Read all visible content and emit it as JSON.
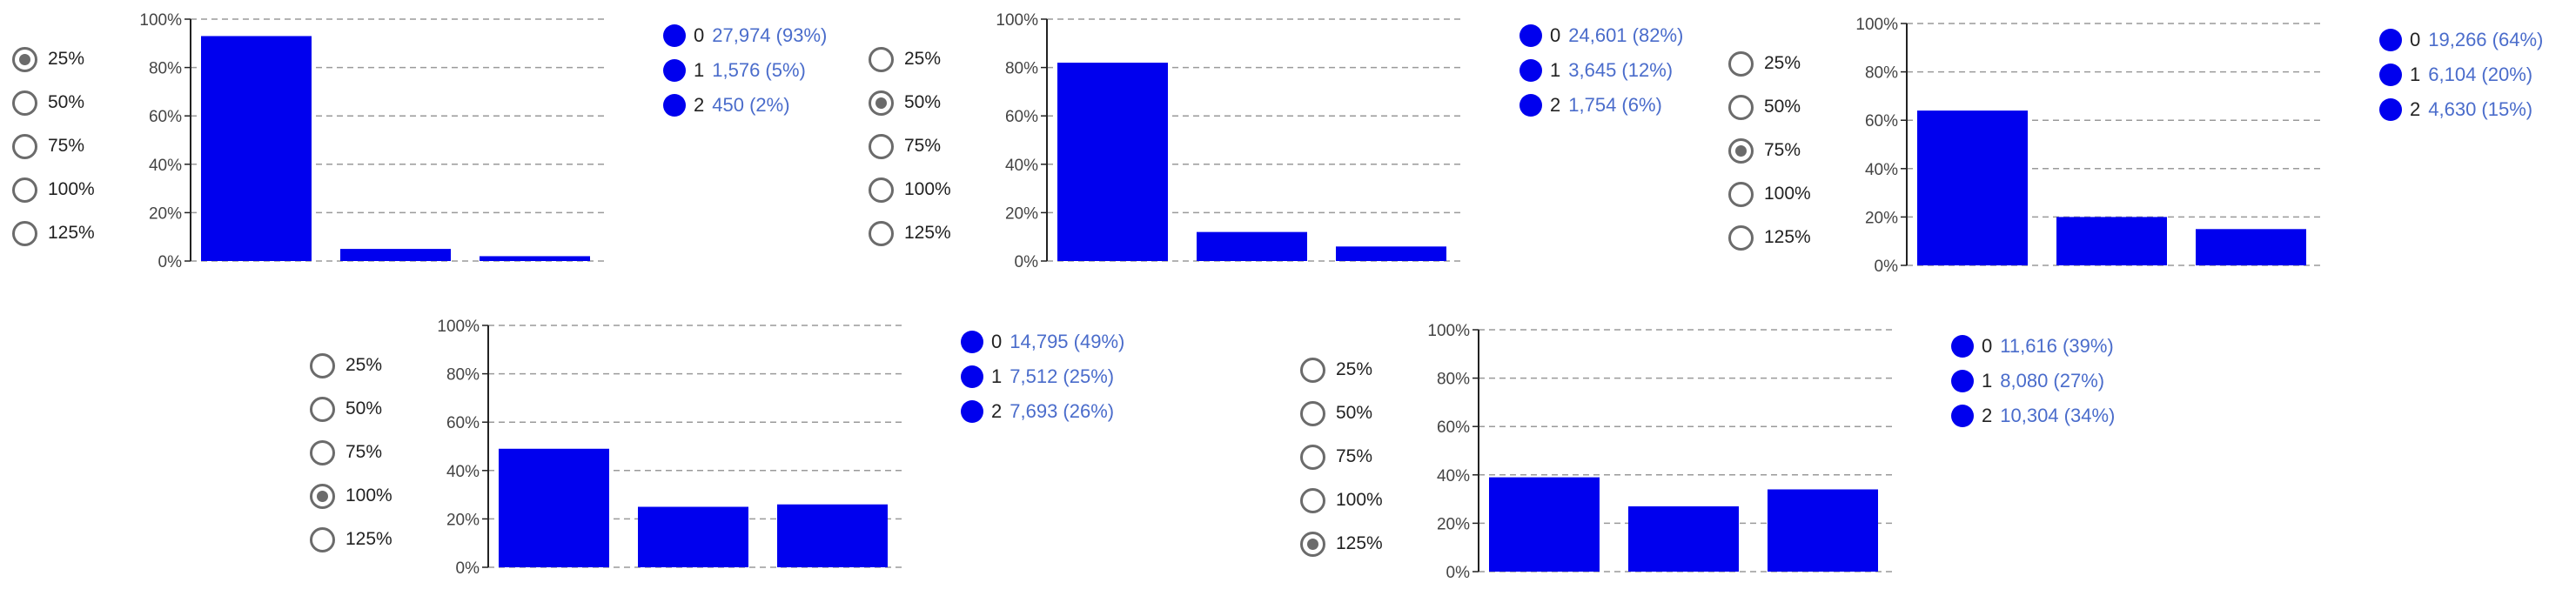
{
  "colors": {
    "bar": "#0000ee",
    "value_text": "#4a6ccb",
    "radio": "#6b6b6b",
    "grid": "#9a9a9a"
  },
  "radio_options": [
    "25%",
    "50%",
    "75%",
    "100%",
    "125%"
  ],
  "panels": [
    {
      "selected": "25%",
      "legend": [
        {
          "key": "0",
          "value": "27,974 (93%)"
        },
        {
          "key": "1",
          "value": "1,576 (5%)"
        },
        {
          "key": "2",
          "value": "450 (2%)"
        }
      ]
    },
    {
      "selected": "50%",
      "legend": [
        {
          "key": "0",
          "value": "24,601 (82%)"
        },
        {
          "key": "1",
          "value": "3,645 (12%)"
        },
        {
          "key": "2",
          "value": "1,754 (6%)"
        }
      ]
    },
    {
      "selected": "75%",
      "legend": [
        {
          "key": "0",
          "value": "19,266 (64%)"
        },
        {
          "key": "1",
          "value": "6,104 (20%)"
        },
        {
          "key": "2",
          "value": "4,630 (15%)"
        }
      ]
    },
    {
      "selected": "100%",
      "legend": [
        {
          "key": "0",
          "value": "14,795 (49%)"
        },
        {
          "key": "1",
          "value": "7,512 (25%)"
        },
        {
          "key": "2",
          "value": "7,693 (26%)"
        }
      ]
    },
    {
      "selected": "125%",
      "legend": [
        {
          "key": "0",
          "value": "11,616 (39%)"
        },
        {
          "key": "1",
          "value": "8,080 (27%)"
        },
        {
          "key": "2",
          "value": "10,304 (34%)"
        }
      ]
    }
  ],
  "chart_data": [
    {
      "type": "bar",
      "categories": [
        "0",
        "1",
        "2"
      ],
      "values": [
        93,
        5,
        2
      ],
      "ylim": [
        0,
        100
      ],
      "yticks": [
        "0%",
        "20%",
        "40%",
        "60%",
        "80%",
        "100%"
      ],
      "grid": true,
      "legend": "right"
    },
    {
      "type": "bar",
      "categories": [
        "0",
        "1",
        "2"
      ],
      "values": [
        82,
        12,
        6
      ],
      "ylim": [
        0,
        100
      ],
      "yticks": [
        "0%",
        "20%",
        "40%",
        "60%",
        "80%",
        "100%"
      ],
      "grid": true,
      "legend": "right"
    },
    {
      "type": "bar",
      "categories": [
        "0",
        "1",
        "2"
      ],
      "values": [
        64,
        20,
        15
      ],
      "ylim": [
        0,
        100
      ],
      "yticks": [
        "0%",
        "20%",
        "40%",
        "60%",
        "80%",
        "100%"
      ],
      "grid": true,
      "legend": "right"
    },
    {
      "type": "bar",
      "categories": [
        "0",
        "1",
        "2"
      ],
      "values": [
        49,
        25,
        26
      ],
      "ylim": [
        0,
        100
      ],
      "yticks": [
        "0%",
        "20%",
        "40%",
        "60%",
        "80%",
        "100%"
      ],
      "grid": true,
      "legend": "right"
    },
    {
      "type": "bar",
      "categories": [
        "0",
        "1",
        "2"
      ],
      "values": [
        39,
        27,
        34
      ],
      "ylim": [
        0,
        100
      ],
      "yticks": [
        "0%",
        "20%",
        "40%",
        "60%",
        "80%",
        "100%"
      ],
      "grid": true,
      "legend": "right"
    }
  ]
}
